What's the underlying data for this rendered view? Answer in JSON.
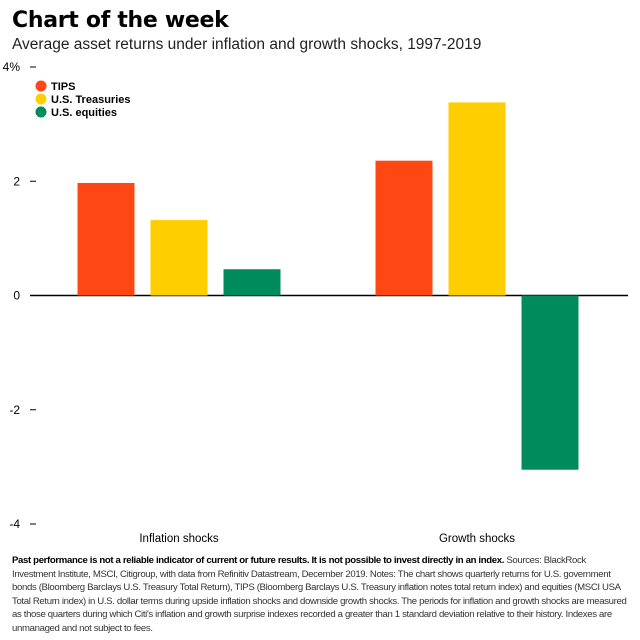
{
  "header": {
    "title": "Chart of the week",
    "subtitle": "Average asset returns under inflation and growth shocks, 1997-2019"
  },
  "footnote": {
    "bold_text": "Past performance is not a reliable indicator of current or future results. It is not possible to invest directly in an index.",
    "text": " Sources: BlackRock Investment Institute, MSCI, Citigroup, with data from Refinitiv Datastream, December 2019. Notes: The chart shows quarterly returns for U.S. government bonds (Bloomberg Barclays U.S. Treasury Total Return), TIPS (Bloomberg Barclays U.S. Treasury inflation notes total return index) and equities (MSCI USA Total Return index) in U.S. dollar terms during upside inflation shocks and downside growth shocks. The periods for inflation and growth shocks are measured as those quarters during which Citi's inflation and growth surprise indexes recorded a greater than 1 standard deviation relative to their history. Indexes are unmanaged and not subject to fees."
  },
  "chart_data": {
    "type": "bar",
    "categories": [
      "Inflation shocks",
      "Growth shocks"
    ],
    "series": [
      {
        "name": "TIPS",
        "color": "#ff4713",
        "values": [
          1.97,
          2.36
        ]
      },
      {
        "name": "U.S. Treasuries",
        "color": "#ffce00",
        "values": [
          1.32,
          3.38
        ]
      },
      {
        "name": "U.S. equities",
        "color": "#008b5c",
        "values": [
          0.46,
          -3.05
        ]
      }
    ],
    "ylim": [
      -4,
      4
    ],
    "yticks": [
      -4,
      -2,
      0,
      2,
      4
    ],
    "ytick_labels": [
      "-4",
      "-2",
      "0",
      "2",
      "4%"
    ],
    "legend_position": "top-left",
    "grid": false
  }
}
